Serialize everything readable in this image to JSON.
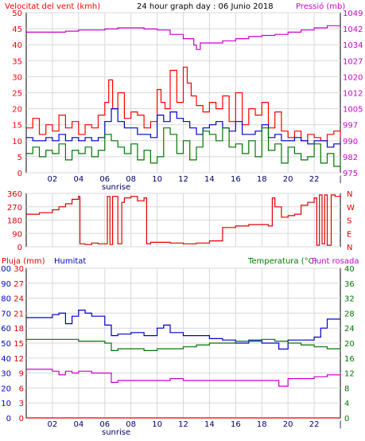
{
  "header": {
    "wind_label": "Velocitat del vent (kmh)",
    "title": "24 hour graph day : 06 Junio 2018",
    "pressure_label": "Pressió (mb)"
  },
  "bottom_header": {
    "rain_label": "Pluja (mm)",
    "humidity_label": "Humitat",
    "temp_label": "Temperatura (°C)",
    "dew_label": "Punt rosada"
  },
  "x_axis": {
    "ticks": [
      "02",
      "04",
      "06",
      "08",
      "10",
      "12",
      "14",
      "16",
      "18",
      "20",
      "22"
    ],
    "sunrise_label": "sunrise"
  },
  "colors": {
    "wind_gust": "#ff0000",
    "wind_avg": "#0000cc",
    "wind_speed": "#007700",
    "pressure": "#cc00cc",
    "direction": "#dd0000",
    "humidity": "#0000cc",
    "temperature": "#007700",
    "dew_point": "#cc00cc",
    "rain": "#dd0000"
  },
  "chart_data": [
    {
      "type": "line",
      "panel": "wind_pressure",
      "xlabel": "",
      "x_range": [
        0,
        24
      ],
      "left_axis": {
        "label": "Velocitat del vent (kmh)",
        "ylim": [
          0,
          50
        ],
        "ticks": [
          0,
          5,
          10,
          15,
          20,
          25,
          30,
          35,
          40,
          45,
          50
        ]
      },
      "right_axis": {
        "label": "Pressió (mb)",
        "ylim": [
          975,
          1049
        ],
        "ticks": [
          975,
          982,
          990,
          997,
          1005,
          1012,
          1020,
          1027,
          1034,
          1042,
          1049
        ]
      },
      "series": [
        {
          "axis": "right",
          "color_key": "pressure",
          "x": [
            0,
            1,
            2,
            3,
            4,
            5,
            6,
            7,
            8,
            9,
            10,
            11,
            12,
            12.8,
            13,
            13.3,
            14,
            15,
            16,
            17,
            18,
            19,
            20,
            21,
            22,
            23,
            24
          ],
          "values": [
            1040,
            1040,
            1040,
            1040.5,
            1041,
            1041,
            1041.5,
            1042,
            1042,
            1041.5,
            1041,
            1039,
            1037,
            1034,
            1032,
            1035,
            1035,
            1036,
            1037,
            1038,
            1038.5,
            1039,
            1040,
            1041,
            1042,
            1043,
            1043
          ]
        },
        {
          "axis": "left",
          "color_key": "wind_gust",
          "x": [
            0,
            0.5,
            1,
            1.5,
            2,
            2.5,
            3,
            3.5,
            4,
            4.5,
            5,
            5.5,
            6,
            6.3,
            6.6,
            7,
            7.5,
            8,
            8.5,
            9,
            9.5,
            10,
            10.3,
            10.6,
            11,
            11.5,
            12,
            12.3,
            12.6,
            13,
            13.5,
            14,
            14.5,
            15,
            15.5,
            16,
            16.5,
            17,
            17.5,
            18,
            18.5,
            19,
            19.5,
            20,
            20.5,
            21,
            21.5,
            22,
            22.5,
            23,
            23.5,
            24
          ],
          "values": [
            14,
            17,
            12,
            15,
            13,
            18,
            14,
            16,
            12,
            15,
            14,
            18,
            22,
            29,
            20,
            25,
            17,
            19,
            18,
            14,
            16,
            26,
            22,
            20,
            32,
            22,
            33,
            28,
            24,
            21,
            19,
            22,
            20,
            24,
            16,
            25,
            15,
            20,
            18,
            22,
            14,
            19,
            13,
            11,
            13,
            10,
            12,
            11,
            10,
            12,
            13,
            11
          ]
        },
        {
          "axis": "left",
          "color_key": "wind_avg",
          "x": [
            0,
            0.5,
            1,
            1.5,
            2,
            2.5,
            3,
            3.5,
            4,
            4.5,
            5,
            5.5,
            6,
            6.5,
            7,
            7.5,
            8,
            8.5,
            9,
            9.5,
            10,
            10.5,
            11,
            11.5,
            12,
            12.5,
            13,
            13.5,
            14,
            14.5,
            15,
            15.5,
            16,
            16.5,
            17,
            17.5,
            18,
            18.5,
            19,
            19.5,
            20,
            20.5,
            21,
            21.5,
            22,
            22.5,
            23,
            23.5,
            24
          ],
          "values": [
            11,
            10,
            10,
            11,
            10,
            12,
            10,
            11,
            10,
            11,
            10,
            11,
            16,
            20,
            16,
            14,
            14,
            12,
            12,
            11,
            18,
            16,
            19,
            17,
            16,
            14,
            12,
            14,
            15,
            16,
            14,
            13,
            16,
            12,
            12,
            13,
            15,
            11,
            12,
            10,
            10,
            11,
            10,
            9,
            10,
            10,
            8,
            9,
            10
          ]
        },
        {
          "axis": "left",
          "color_key": "wind_speed",
          "x": [
            0,
            0.5,
            1,
            1.5,
            2,
            2.5,
            3,
            3.5,
            4,
            4.5,
            5,
            5.5,
            6,
            6.5,
            7,
            7.5,
            8,
            8.5,
            9,
            9.5,
            10,
            10.5,
            11,
            11.5,
            12,
            12.5,
            13,
            13.5,
            14,
            14.5,
            15,
            15.5,
            16,
            16.5,
            17,
            17.5,
            18,
            18.5,
            19,
            19.5,
            20,
            20.5,
            21,
            21.5,
            22,
            22.5,
            23,
            23.5,
            24
          ],
          "values": [
            6,
            8,
            5,
            7,
            6,
            9,
            4,
            7,
            6,
            8,
            5,
            7,
            12,
            10,
            8,
            6,
            9,
            4,
            7,
            3,
            5,
            14,
            12,
            6,
            10,
            4,
            8,
            13,
            12,
            10,
            14,
            8,
            9,
            6,
            10,
            5,
            14,
            7,
            9,
            3,
            8,
            6,
            4,
            5,
            9,
            3,
            6,
            2,
            5
          ]
        }
      ]
    },
    {
      "type": "line",
      "panel": "direction",
      "x_range": [
        0,
        24
      ],
      "left_axis": {
        "ylim": [
          0,
          360
        ],
        "ticks": [
          0,
          90,
          180,
          270,
          360
        ]
      },
      "right_axis": {
        "ticks": [
          "N",
          "E",
          "S",
          "W",
          "N"
        ]
      },
      "series": [
        {
          "color_key": "direction",
          "x": [
            0,
            1,
            2,
            2.5,
            3,
            3.5,
            4,
            4.1,
            4.5,
            5,
            5.5,
            6,
            6.2,
            6.4,
            6.6,
            7,
            7.3,
            7.5,
            8,
            8.5,
            9,
            9.2,
            9.5,
            10,
            11,
            12,
            13,
            14,
            14.5,
            15,
            16,
            17,
            18,
            18.5,
            18.8,
            19,
            19.5,
            20,
            20.5,
            21,
            21.5,
            22,
            22.2,
            22.4,
            22.6,
            22.8,
            23,
            23.3,
            23.6,
            24
          ],
          "values": [
            220,
            230,
            250,
            270,
            290,
            320,
            340,
            20,
            15,
            25,
            20,
            20,
            340,
            15,
            340,
            20,
            300,
            330,
            340,
            310,
            330,
            20,
            30,
            30,
            25,
            20,
            25,
            40,
            40,
            130,
            140,
            150,
            150,
            140,
            330,
            270,
            200,
            210,
            220,
            280,
            300,
            330,
            10,
            350,
            20,
            350,
            10,
            350,
            340,
            350
          ]
        }
      ]
    },
    {
      "type": "line",
      "panel": "temperature_humidity",
      "x_range": [
        0,
        24
      ],
      "left_axis_rain": {
        "label": "Pluja (mm)",
        "ylim": [
          0,
          30
        ],
        "ticks": [
          0,
          3,
          6,
          9,
          12,
          15,
          18,
          21,
          24,
          27,
          30
        ]
      },
      "left_axis_humidity": {
        "label": "Humitat",
        "ylim": [
          0,
          100
        ],
        "ticks": [
          0,
          10,
          20,
          30,
          40,
          50,
          60,
          70,
          80,
          90,
          100
        ]
      },
      "right_axis": {
        "label": "Temperatura (°C) / Punt rosada",
        "ylim": [
          0,
          40
        ],
        "ticks": [
          0,
          4,
          8,
          12,
          16,
          20,
          24,
          28,
          32,
          36,
          40
        ]
      },
      "series": [
        {
          "axis": "humidity",
          "color_key": "humidity",
          "x": [
            0,
            1,
            2,
            2.5,
            3,
            3.5,
            4,
            4.5,
            5,
            5.5,
            6,
            6.5,
            7,
            8,
            9,
            10,
            10.5,
            11,
            12,
            13,
            14,
            15,
            16,
            17,
            18,
            19,
            19.3,
            20,
            21,
            22,
            22.5,
            23,
            24
          ],
          "values": [
            67,
            67,
            69,
            70,
            63,
            68,
            72,
            70,
            68,
            68,
            62,
            55,
            56,
            57,
            55,
            60,
            62,
            57,
            55,
            55,
            53,
            52,
            50,
            52,
            50,
            50,
            46,
            52,
            52,
            54,
            60,
            66,
            66
          ]
        },
        {
          "axis": "right",
          "color_key": "temperature",
          "x": [
            0,
            1,
            2,
            3,
            4,
            5,
            6,
            6.5,
            7,
            8,
            9,
            10,
            11,
            12,
            13,
            14,
            15,
            16,
            17,
            18,
            19,
            20,
            21,
            22,
            23,
            24
          ],
          "values": [
            21,
            21,
            21,
            21,
            20.5,
            20.5,
            20,
            18,
            18.5,
            18.5,
            18,
            18.5,
            18.5,
            19,
            19.5,
            20,
            20,
            20.5,
            20.5,
            21,
            20.5,
            20,
            19.5,
            19,
            18.5,
            17.5
          ]
        },
        {
          "axis": "right",
          "color_key": "dew_point",
          "x": [
            0,
            1,
            2,
            2.5,
            3,
            3.5,
            4,
            5,
            6,
            6.5,
            7,
            8,
            9,
            10,
            11,
            12,
            13,
            14,
            15,
            16,
            17,
            18,
            19,
            19.3,
            20,
            21,
            22,
            23,
            24
          ],
          "values": [
            13,
            13,
            12.5,
            11.5,
            12.5,
            12,
            12.5,
            12,
            12,
            9.5,
            10,
            10,
            10,
            10,
            10.5,
            10,
            10,
            10,
            10,
            10,
            10,
            10,
            10,
            8.5,
            10.5,
            10.5,
            11,
            11.5,
            11
          ]
        },
        {
          "axis": "rain",
          "color_key": "rain",
          "x": [
            0,
            24
          ],
          "values": [
            0,
            0
          ]
        }
      ]
    }
  ]
}
